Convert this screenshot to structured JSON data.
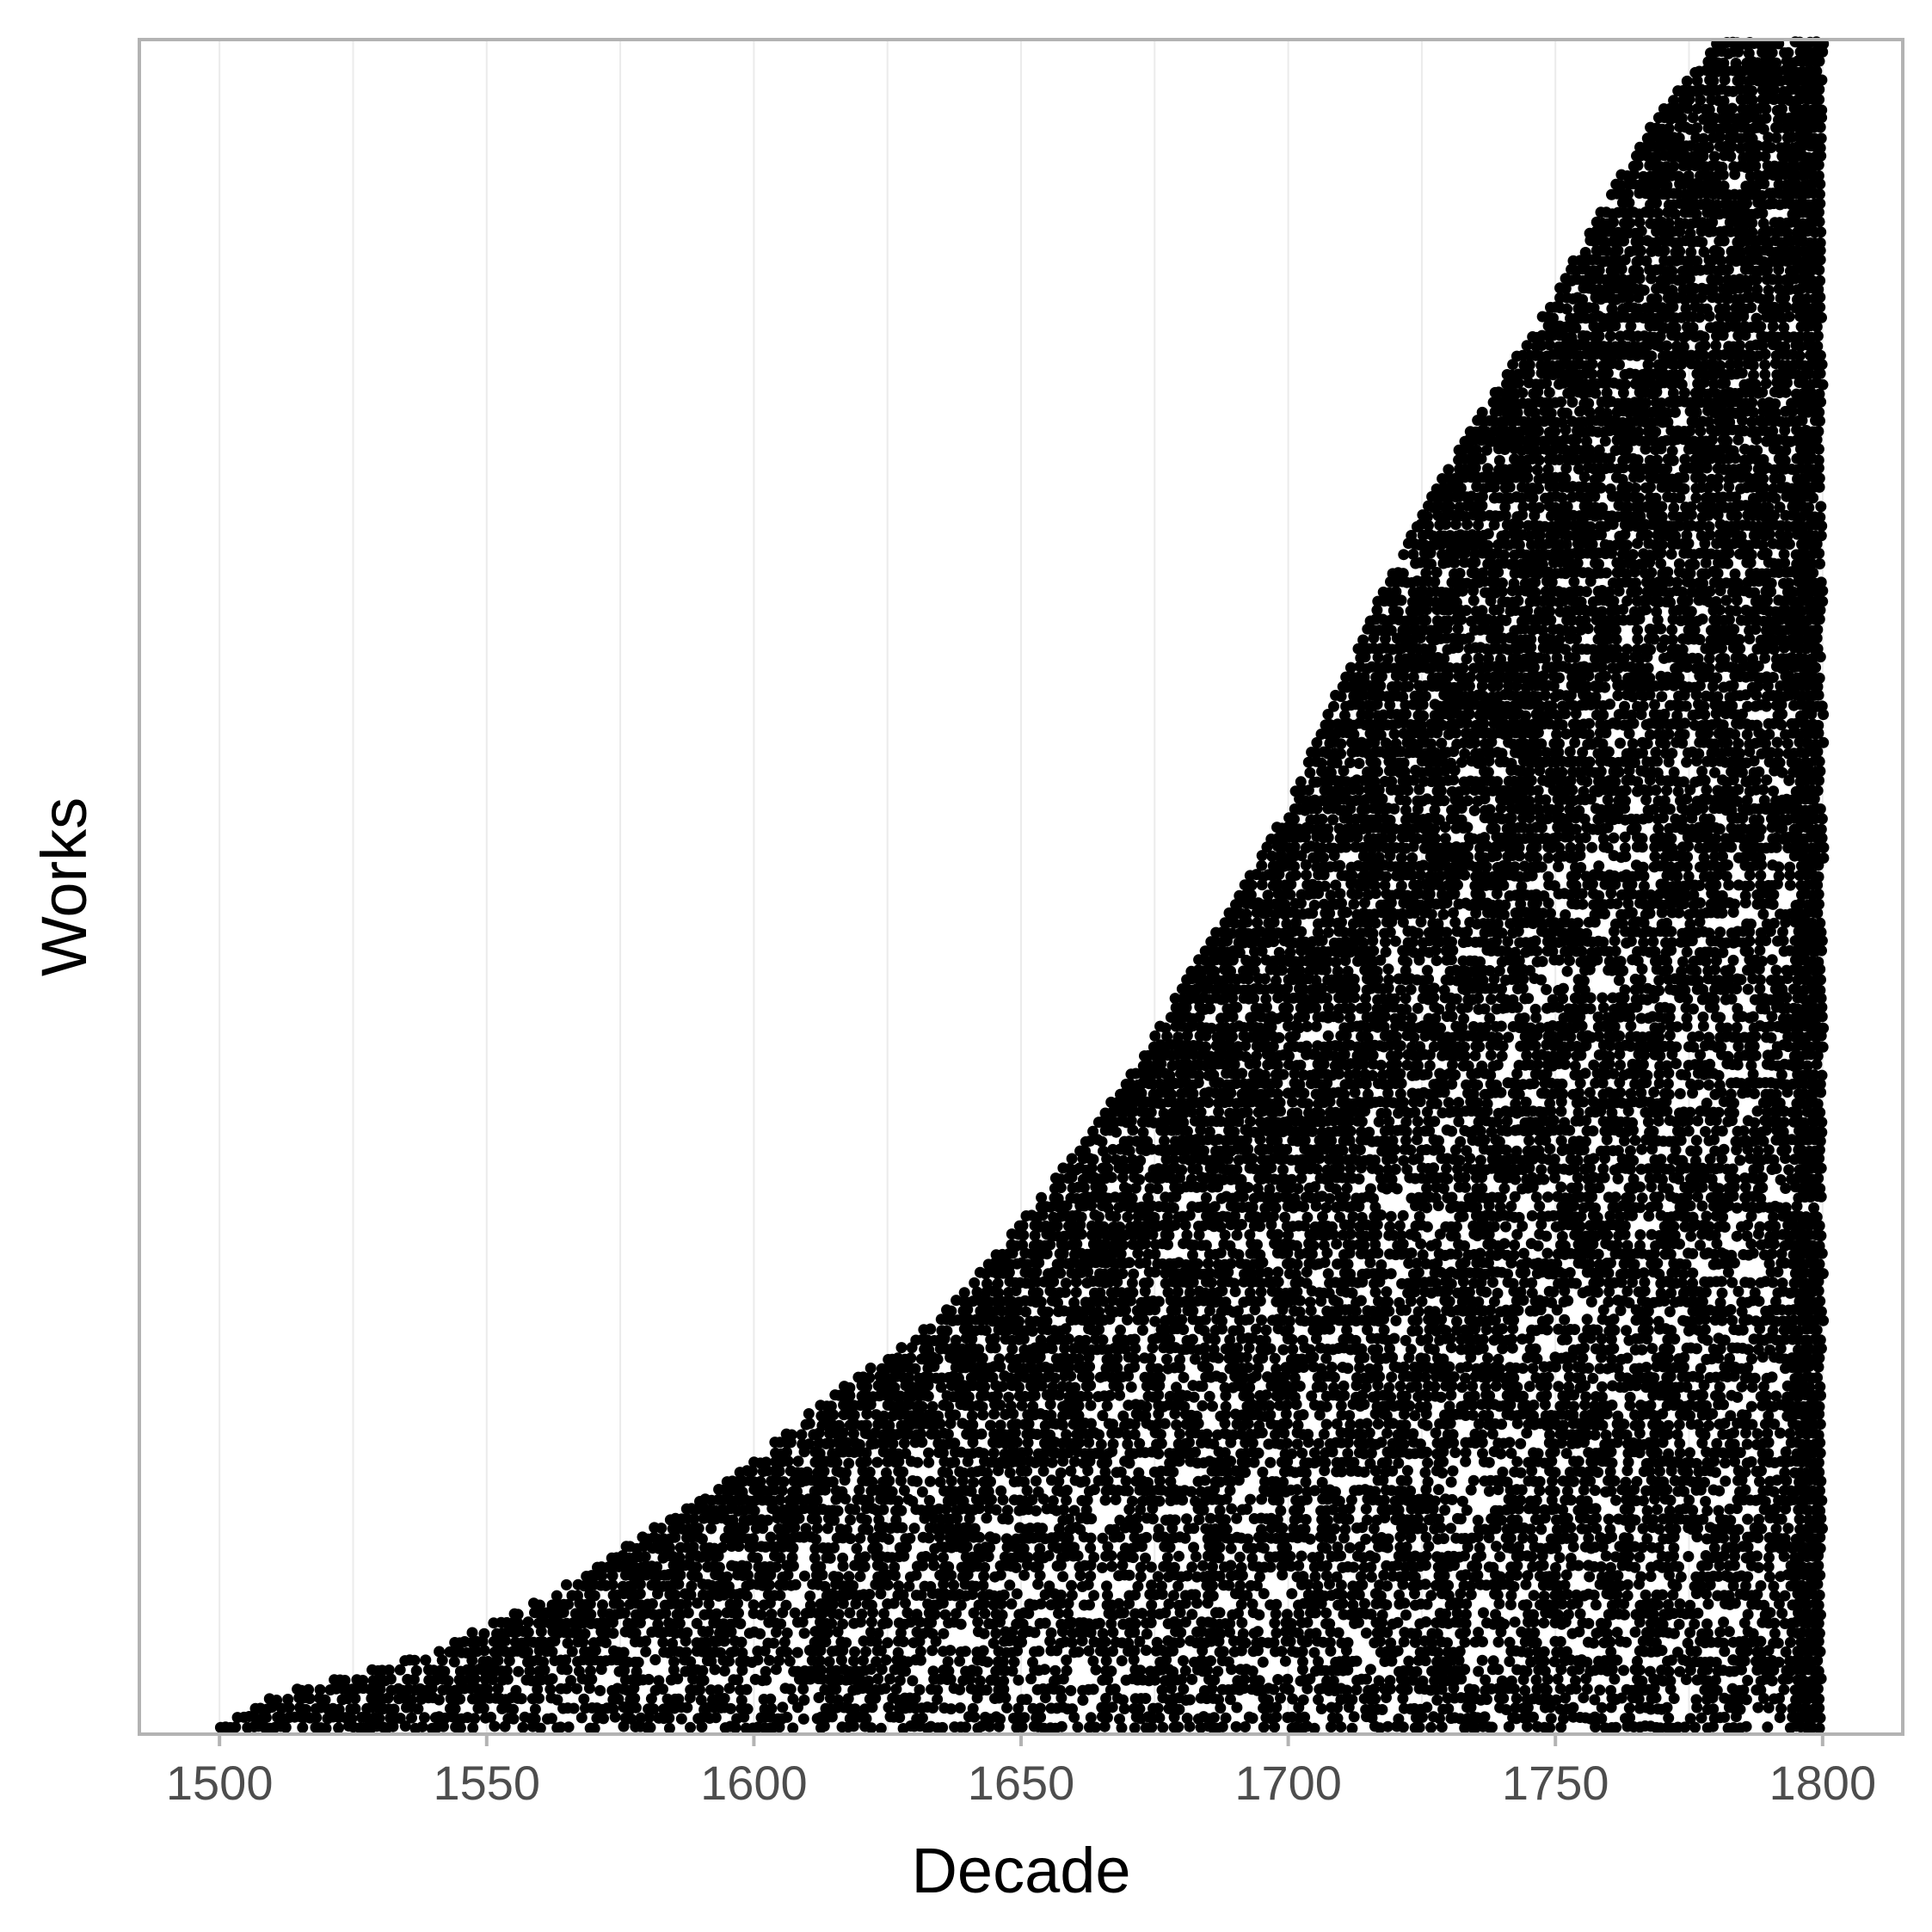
{
  "chart_data": {
    "type": "scatter",
    "title": "",
    "xlabel": "Decade",
    "ylabel": "Works",
    "xlim": [
      1485,
      1815
    ],
    "x_ticks": [
      1500,
      1550,
      1600,
      1650,
      1700,
      1750,
      1800
    ],
    "x_tick_labels": [
      "1500",
      "1550",
      "1600",
      "1650",
      "1700",
      "1750",
      "1800"
    ],
    "y_ticks_shown": false,
    "grid": "vertical minor and major lines",
    "legend": "none",
    "point_color": "#000000",
    "description_of_distribution": "Each work is a point plotted at the decades it appears; cumulative works index on y rises slowly then steeply.",
    "frontier": [
      {
        "x": 1500,
        "y": 0.0
      },
      {
        "x": 1510,
        "y": 0.018
      },
      {
        "x": 1520,
        "y": 0.028
      },
      {
        "x": 1530,
        "y": 0.035
      },
      {
        "x": 1540,
        "y": 0.045
      },
      {
        "x": 1550,
        "y": 0.06
      },
      {
        "x": 1560,
        "y": 0.075
      },
      {
        "x": 1570,
        "y": 0.095
      },
      {
        "x": 1580,
        "y": 0.115
      },
      {
        "x": 1590,
        "y": 0.135
      },
      {
        "x": 1600,
        "y": 0.158
      },
      {
        "x": 1610,
        "y": 0.185
      },
      {
        "x": 1620,
        "y": 0.21
      },
      {
        "x": 1630,
        "y": 0.23
      },
      {
        "x": 1640,
        "y": 0.26
      },
      {
        "x": 1650,
        "y": 0.3
      },
      {
        "x": 1660,
        "y": 0.34
      },
      {
        "x": 1670,
        "y": 0.385
      },
      {
        "x": 1680,
        "y": 0.44
      },
      {
        "x": 1690,
        "y": 0.49
      },
      {
        "x": 1700,
        "y": 0.545
      },
      {
        "x": 1710,
        "y": 0.62
      },
      {
        "x": 1720,
        "y": 0.69
      },
      {
        "x": 1730,
        "y": 0.75
      },
      {
        "x": 1740,
        "y": 0.8
      },
      {
        "x": 1750,
        "y": 0.85
      },
      {
        "x": 1760,
        "y": 0.91
      },
      {
        "x": 1770,
        "y": 0.96
      },
      {
        "x": 1780,
        "y": 1.0
      },
      {
        "x": 1800,
        "y": 1.0
      }
    ]
  }
}
